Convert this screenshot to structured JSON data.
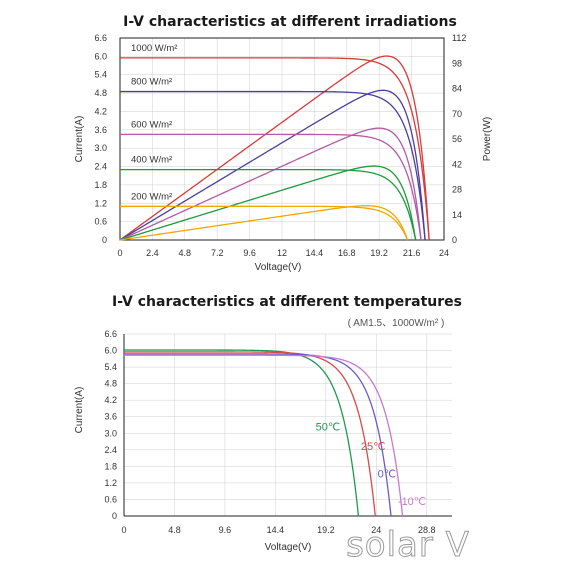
{
  "chart_data": [
    {
      "type": "line",
      "title": "I-V characteristics at different irradiations",
      "xlabel": "Voltage(V)",
      "ylabel": "Current(A)",
      "y2label": "Power(W)",
      "xlim": [
        0,
        24
      ],
      "ylim": [
        0,
        6.6
      ],
      "y2lim": [
        0,
        112
      ],
      "x_ticks": [
        "0",
        "2.4",
        "4.8",
        "7.2",
        "9.6",
        "12",
        "14.4",
        "16.8",
        "19.2",
        "21.6",
        "24"
      ],
      "y_ticks": [
        "0",
        "0.6",
        "1.2",
        "1.8",
        "2.4",
        "3.0",
        "3.6",
        "4.2",
        "4.8",
        "5.4",
        "6.0",
        "6.6"
      ],
      "y2_ticks": [
        "0",
        "14",
        "28",
        "42",
        "56",
        "70",
        "84",
        "98",
        "112"
      ],
      "grid": true,
      "series": [
        {
          "name": "1000 W/m²",
          "color": "#d93a3a",
          "isc": 5.95,
          "voc": 22.9,
          "pmax": 102,
          "vmp": 18.9
        },
        {
          "name": "800 W/m²",
          "color": "#4a3f9e",
          "isc": 4.85,
          "voc": 22.6,
          "pmax": 83,
          "vmp": 18.9
        },
        {
          "name": "600 W/m²",
          "color": "#b35aa6",
          "isc": 3.45,
          "voc": 22.3,
          "pmax": 62,
          "vmp": 18.9
        },
        {
          "name": "400 W/m²",
          "color": "#1e9a3e",
          "isc": 2.3,
          "voc": 21.9,
          "pmax": 41,
          "vmp": 18.8
        },
        {
          "name": "200 W/m²",
          "color": "#f0a800",
          "isc": 1.1,
          "voc": 21.3,
          "pmax": 19,
          "vmp": 18.8
        }
      ]
    },
    {
      "type": "line",
      "title": "I-V characteristics at different temperatures",
      "subtitle": "( AM1.5、1000W/m² )",
      "xlabel": "Voltage(V)",
      "ylabel": "Current(A)",
      "xlim": [
        0,
        31.2
      ],
      "ylim": [
        0,
        6.6
      ],
      "x_ticks": [
        "0",
        "4.8",
        "9.6",
        "14.4",
        "19.2",
        "24",
        "28.8"
      ],
      "y_ticks": [
        "0",
        "0.6",
        "1.2",
        "1.8",
        "2.4",
        "3.0",
        "3.6",
        "4.2",
        "4.8",
        "5.4",
        "6.0",
        "6.6"
      ],
      "grid": true,
      "series": [
        {
          "name": "50℃",
          "color": "#1e9a4e",
          "isc": 6.02,
          "voc": 22.3
        },
        {
          "name": "25℃",
          "color": "#d94a4a",
          "isc": 5.95,
          "voc": 23.9
        },
        {
          "name": "0℃",
          "color": "#6a5ad0",
          "isc": 5.88,
          "voc": 25.4
        },
        {
          "name": "-10℃",
          "color": "#c87ad0",
          "isc": 5.83,
          "voc": 26.5
        }
      ]
    }
  ],
  "watermark": "solar V"
}
